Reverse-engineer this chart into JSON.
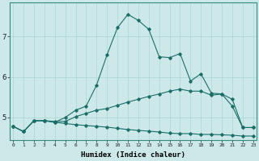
{
  "title": "",
  "xlabel": "Humidex (Indice chaleur)",
  "ylabel": "",
  "bg_color": "#cce8e8",
  "line_color": "#1a6e6a",
  "grid_color": "#b0d8d8",
  "x_ticks": [
    0,
    1,
    2,
    3,
    4,
    5,
    6,
    7,
    8,
    9,
    10,
    11,
    12,
    13,
    14,
    15,
    16,
    17,
    18,
    19,
    20,
    21,
    22,
    23
  ],
  "y_ticks": [
    5,
    6,
    7
  ],
  "xlim": [
    -0.3,
    23.3
  ],
  "ylim": [
    4.45,
    7.85
  ],
  "line1_x": [
    0,
    1,
    2,
    3,
    4,
    5,
    6,
    7,
    8,
    9,
    10,
    11,
    12,
    13,
    14,
    15,
    16,
    17,
    18,
    19,
    20,
    21,
    22,
    23
  ],
  "line1_y": [
    4.78,
    4.65,
    4.92,
    4.92,
    4.88,
    5.0,
    5.18,
    5.28,
    5.8,
    6.55,
    7.22,
    7.55,
    7.4,
    7.18,
    6.5,
    6.48,
    6.58,
    5.9,
    6.08,
    5.6,
    5.58,
    5.28,
    4.75,
    4.75
  ],
  "line2_x": [
    0,
    1,
    2,
    3,
    4,
    5,
    6,
    7,
    8,
    9,
    10,
    11,
    12,
    13,
    14,
    15,
    16,
    17,
    18,
    19,
    20,
    21,
    22,
    23
  ],
  "line2_y": [
    4.78,
    4.65,
    4.92,
    4.92,
    4.9,
    4.9,
    5.02,
    5.1,
    5.18,
    5.22,
    5.3,
    5.38,
    5.45,
    5.52,
    5.58,
    5.65,
    5.7,
    5.65,
    5.65,
    5.55,
    5.58,
    5.45,
    4.75,
    4.75
  ],
  "line3_x": [
    0,
    1,
    2,
    3,
    4,
    5,
    6,
    7,
    8,
    9,
    10,
    11,
    12,
    13,
    14,
    15,
    16,
    17,
    18,
    19,
    20,
    21,
    22,
    23
  ],
  "line3_y": [
    4.78,
    4.65,
    4.92,
    4.92,
    4.88,
    4.85,
    4.82,
    4.8,
    4.78,
    4.76,
    4.73,
    4.7,
    4.68,
    4.66,
    4.64,
    4.61,
    4.6,
    4.6,
    4.58,
    4.58,
    4.57,
    4.56,
    4.54,
    4.54
  ]
}
